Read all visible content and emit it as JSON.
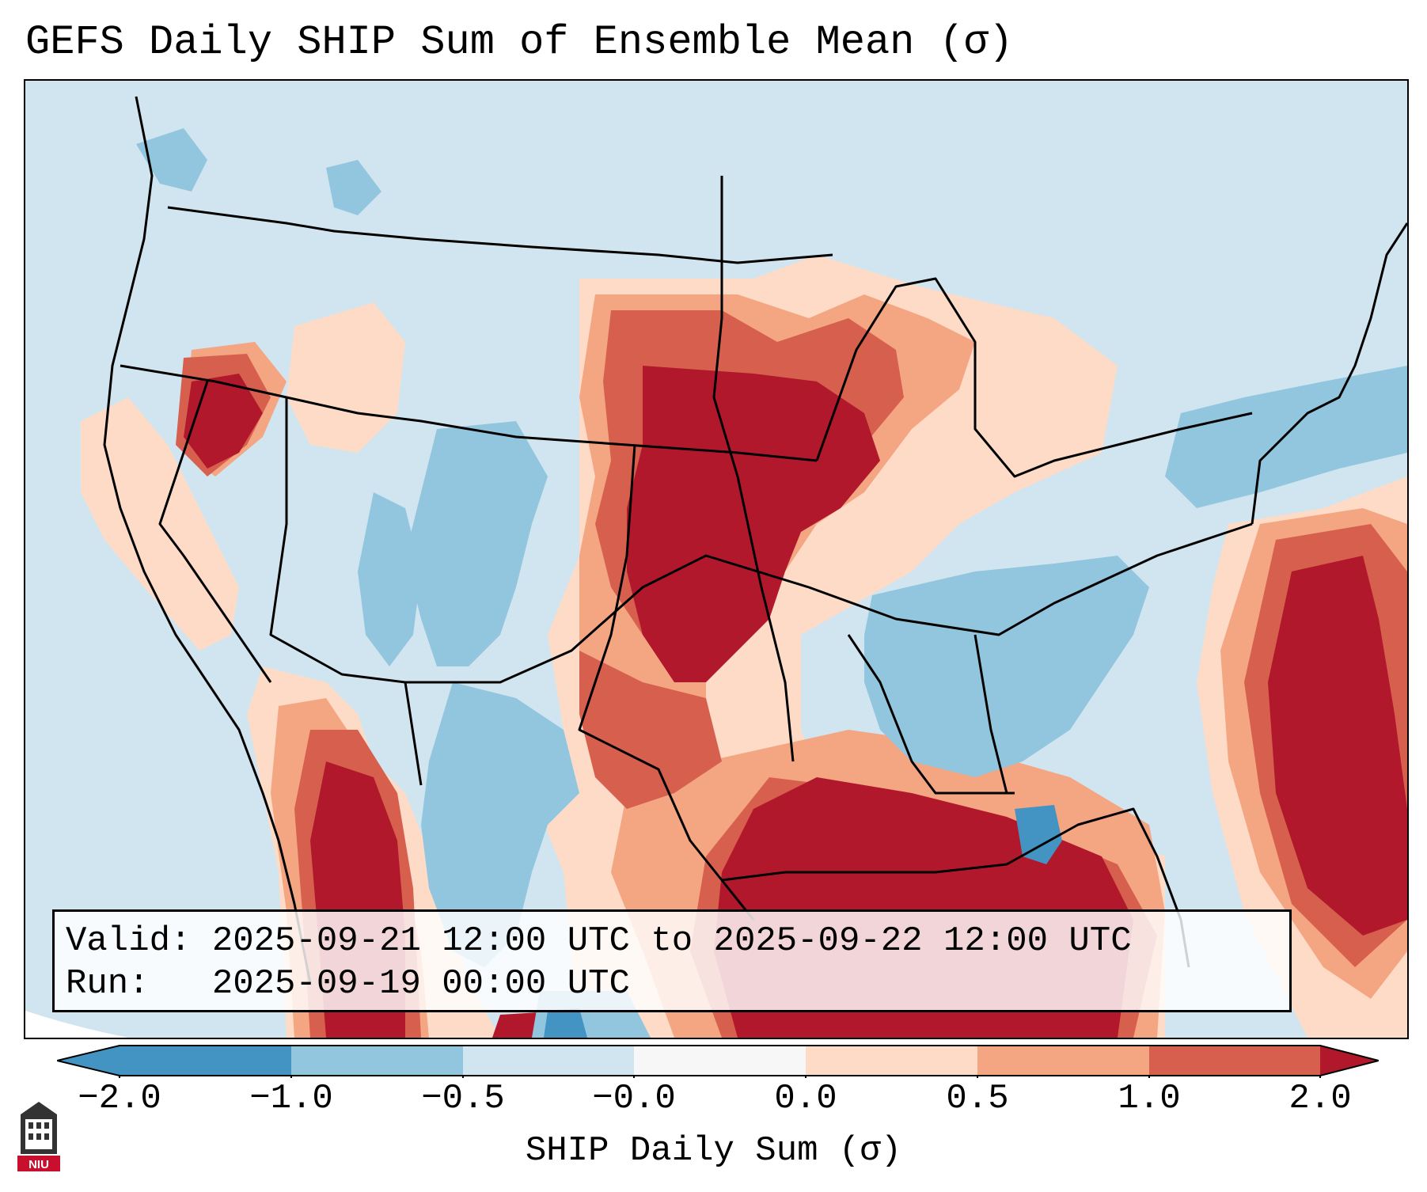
{
  "title": "GEFS Daily SHIP Sum of Ensemble Mean (σ)",
  "info": {
    "valid_line": "Valid: 2025-09-21 12:00 UTC to 2025-09-22 12:00 UTC",
    "run_line": "Run:   2025-09-19 00:00 UTC"
  },
  "colorbar": {
    "label": "SHIP Daily Sum (σ)",
    "ticks": [
      "−2.0",
      "−1.0",
      "−0.5",
      "−0.0",
      "0.0",
      "0.5",
      "1.0",
      "2.0"
    ],
    "colors": [
      "#4393c3",
      "#92c5de",
      "#d1e5f0",
      "#f7f7f7",
      "#fddbc7",
      "#f4a582",
      "#d6604d",
      "#b2182b"
    ],
    "extend": "both"
  },
  "logo": {
    "text": "NIU"
  }
}
